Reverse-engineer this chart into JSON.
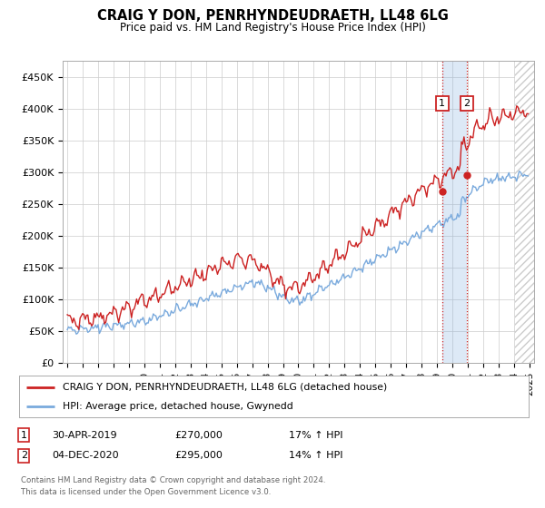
{
  "title": "CRAIG Y DON, PENRHYNDEUDRAETH, LL48 6LG",
  "subtitle": "Price paid vs. HM Land Registry's House Price Index (HPI)",
  "ylabel_ticks": [
    "£0",
    "£50K",
    "£100K",
    "£150K",
    "£200K",
    "£250K",
    "£300K",
    "£350K",
    "£400K",
    "£450K"
  ],
  "ytick_values": [
    0,
    50000,
    100000,
    150000,
    200000,
    250000,
    300000,
    350000,
    400000,
    450000
  ],
  "ylim": [
    0,
    475000
  ],
  "xlim_start": 1994.7,
  "xlim_end": 2025.3,
  "hpi_color": "#7aaadd",
  "price_color": "#cc2222",
  "marker1_date": 2019.33,
  "marker2_date": 2020.92,
  "marker1_price": 270000,
  "marker2_price": 295000,
  "legend_line1": "CRAIG Y DON, PENRHYNDEUDRAETH, LL48 6LG (detached house)",
  "legend_line2": "HPI: Average price, detached house, Gwynedd",
  "footer": "Contains HM Land Registry data © Crown copyright and database right 2024.\nThis data is licensed under the Open Government Licence v3.0.",
  "background_color": "#ffffff",
  "grid_color": "#cccccc",
  "hatched_region_start": 2024.08,
  "hatched_region_end": 2025.3,
  "shaded_region_color": "#ddeeff"
}
